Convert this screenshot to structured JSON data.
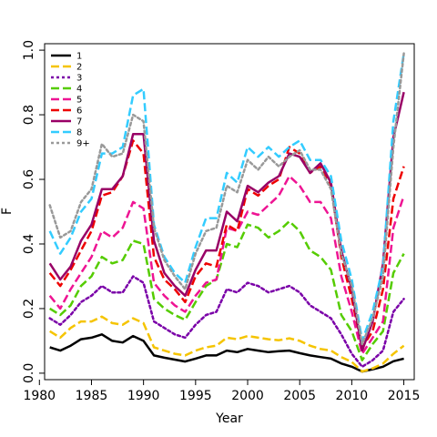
{
  "chart_data": {
    "type": "line",
    "xlabel": "Year",
    "ylabel": "F",
    "xlim": [
      1980.5,
      2016
    ],
    "ylim": [
      -0.02,
      1.02
    ],
    "x_ticks": [
      1980,
      1985,
      1990,
      1995,
      2000,
      2005,
      2010,
      2015
    ],
    "y_ticks": [
      0.0,
      0.2,
      0.4,
      0.6,
      0.8,
      1.0
    ],
    "legend_position": "top-left",
    "x": [
      1981,
      1982,
      1983,
      1984,
      1985,
      1986,
      1987,
      1988,
      1989,
      1990,
      1991,
      1992,
      1993,
      1994,
      1995,
      1996,
      1997,
      1998,
      1999,
      2000,
      2001,
      2002,
      2003,
      2004,
      2005,
      2006,
      2007,
      2008,
      2009,
      2010,
      2011,
      2012,
      2013,
      2014,
      2015
    ],
    "series": [
      {
        "name": "1",
        "color": "#000000",
        "dash": "solid",
        "width": 2.5,
        "values": [
          0.08,
          0.07,
          0.085,
          0.105,
          0.11,
          0.12,
          0.1,
          0.095,
          0.115,
          0.1,
          0.055,
          0.048,
          0.042,
          0.036,
          0.045,
          0.055,
          0.055,
          0.07,
          0.065,
          0.075,
          0.07,
          0.065,
          0.068,
          0.07,
          0.062,
          0.055,
          0.05,
          0.045,
          0.03,
          0.02,
          0.005,
          0.012,
          0.02,
          0.037,
          0.045
        ]
      },
      {
        "name": "2",
        "color": "#F5C400",
        "dash": "dashed",
        "width": 2.5,
        "values": [
          0.13,
          0.11,
          0.14,
          0.16,
          0.16,
          0.175,
          0.155,
          0.15,
          0.17,
          0.155,
          0.08,
          0.07,
          0.06,
          0.055,
          0.07,
          0.08,
          0.085,
          0.11,
          0.105,
          0.115,
          0.11,
          0.105,
          0.102,
          0.108,
          0.1,
          0.085,
          0.075,
          0.07,
          0.05,
          0.035,
          0.005,
          0.015,
          0.03,
          0.06,
          0.085
        ]
      },
      {
        "name": "3",
        "color": "#7A00A8",
        "dash": "dotted",
        "width": 2.5,
        "values": [
          0.17,
          0.15,
          0.18,
          0.22,
          0.24,
          0.27,
          0.25,
          0.25,
          0.3,
          0.28,
          0.16,
          0.14,
          0.12,
          0.11,
          0.15,
          0.18,
          0.19,
          0.26,
          0.25,
          0.28,
          0.27,
          0.25,
          0.26,
          0.27,
          0.25,
          0.21,
          0.19,
          0.17,
          0.12,
          0.06,
          0.02,
          0.04,
          0.07,
          0.19,
          0.23
        ]
      },
      {
        "name": "4",
        "color": "#55CC00",
        "dash": "dashed",
        "width": 2.5,
        "values": [
          0.2,
          0.18,
          0.21,
          0.27,
          0.3,
          0.36,
          0.34,
          0.35,
          0.41,
          0.4,
          0.23,
          0.2,
          0.18,
          0.165,
          0.22,
          0.27,
          0.29,
          0.4,
          0.39,
          0.46,
          0.45,
          0.42,
          0.44,
          0.47,
          0.44,
          0.38,
          0.36,
          0.32,
          0.18,
          0.13,
          0.04,
          0.09,
          0.13,
          0.31,
          0.37
        ]
      },
      {
        "name": "5",
        "color": "#EE1493",
        "dash": "dashed",
        "width": 2.5,
        "values": [
          0.24,
          0.2,
          0.26,
          0.31,
          0.36,
          0.44,
          0.42,
          0.45,
          0.53,
          0.51,
          0.28,
          0.24,
          0.21,
          0.19,
          0.24,
          0.28,
          0.29,
          0.45,
          0.44,
          0.5,
          0.49,
          0.52,
          0.55,
          0.61,
          0.58,
          0.53,
          0.53,
          0.48,
          0.3,
          0.19,
          0.06,
          0.11,
          0.16,
          0.45,
          0.55
        ]
      },
      {
        "name": "6",
        "color": "#EE0000",
        "dash": "dashed",
        "width": 2.5,
        "values": [
          0.31,
          0.27,
          0.32,
          0.38,
          0.44,
          0.55,
          0.56,
          0.61,
          0.72,
          0.68,
          0.36,
          0.29,
          0.26,
          0.22,
          0.3,
          0.34,
          0.33,
          0.46,
          0.44,
          0.57,
          0.55,
          0.58,
          0.6,
          0.7,
          0.68,
          0.62,
          0.64,
          0.58,
          0.36,
          0.23,
          0.08,
          0.13,
          0.26,
          0.54,
          0.64
        ]
      },
      {
        "name": "7",
        "color": "#990066",
        "dash": "solid",
        "width": 2.5,
        "values": [
          0.34,
          0.29,
          0.33,
          0.41,
          0.46,
          0.57,
          0.57,
          0.61,
          0.74,
          0.74,
          0.41,
          0.31,
          0.27,
          0.24,
          0.32,
          0.38,
          0.38,
          0.5,
          0.47,
          0.58,
          0.56,
          0.59,
          0.61,
          0.68,
          0.67,
          0.62,
          0.65,
          0.59,
          0.38,
          0.26,
          0.07,
          0.16,
          0.34,
          0.73,
          0.87
        ]
      },
      {
        "name": "8",
        "color": "#33CCFF",
        "dash": "dashed",
        "width": 2.5,
        "values": [
          0.44,
          0.37,
          0.42,
          0.5,
          0.54,
          0.68,
          0.68,
          0.7,
          0.86,
          0.88,
          0.46,
          0.36,
          0.31,
          0.28,
          0.39,
          0.48,
          0.48,
          0.62,
          0.59,
          0.7,
          0.67,
          0.7,
          0.67,
          0.7,
          0.72,
          0.66,
          0.66,
          0.61,
          0.41,
          0.29,
          0.1,
          0.19,
          0.33,
          0.78,
          0.99
        ]
      },
      {
        "name": "9+",
        "color": "#999999",
        "dash": "dotted",
        "width": 2.5,
        "values": [
          0.52,
          0.42,
          0.44,
          0.53,
          0.57,
          0.71,
          0.67,
          0.68,
          0.8,
          0.78,
          0.45,
          0.35,
          0.3,
          0.26,
          0.37,
          0.44,
          0.45,
          0.58,
          0.56,
          0.66,
          0.63,
          0.67,
          0.64,
          0.67,
          0.69,
          0.63,
          0.63,
          0.57,
          0.37,
          0.27,
          0.09,
          0.17,
          0.3,
          0.7,
          0.99
        ]
      }
    ]
  }
}
